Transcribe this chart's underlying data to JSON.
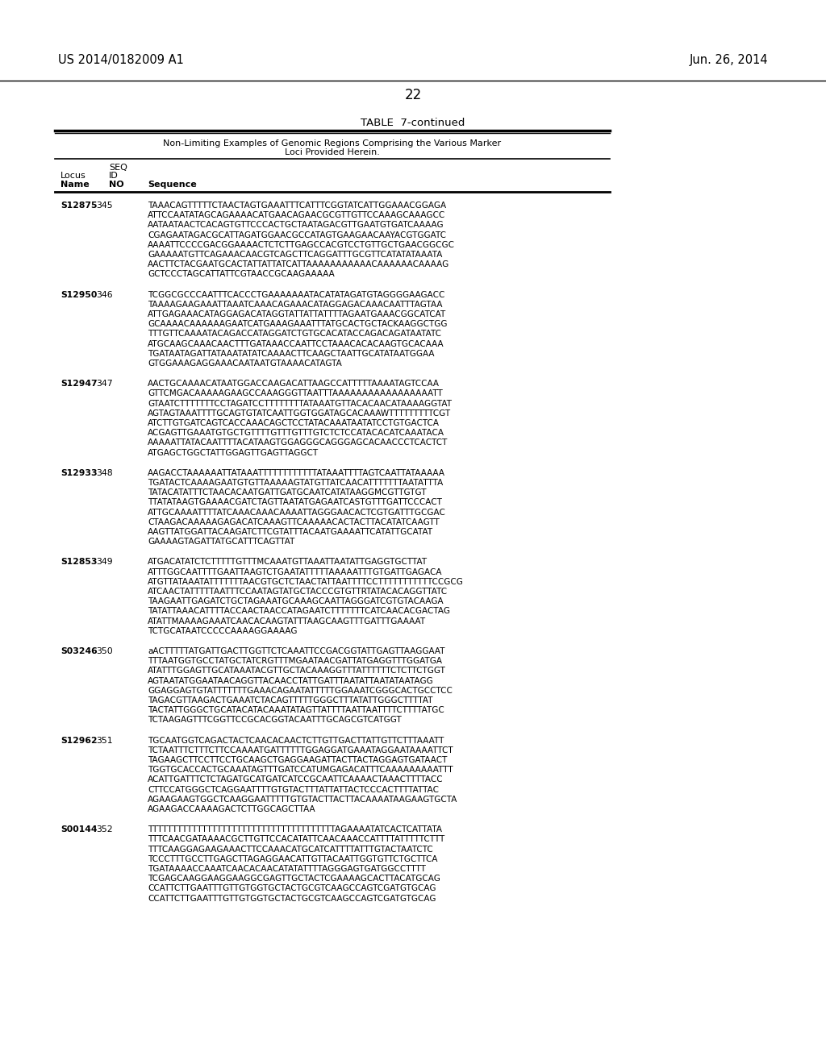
{
  "patent_number": "US 2014/0182009 A1",
  "date": "Jun. 26, 2014",
  "page_number": "22",
  "table_title": "TABLE  7-continued",
  "table_subtitle_line1": "Non-Limiting Examples of Genomic Regions Comprising the Various Marker",
  "table_subtitle_line2": "Loci Provided Herein.",
  "entries": [
    {
      "locus": "S12875",
      "seq_id": "345",
      "lines": [
        "TAAACAGTTTTTCTAACTAGTGAAATTTCATTTCGGTATCATTGGAAACGGAGA",
        "ATTCCAATATAGCAGAAAACATGAACAGAACGCGTTGTTCCAAAGCAAAGCC",
        "AATAATAACTCACAGTGTTCCCACTGCTAATAGACGTTGAATGTGATCAAAAG",
        "CGAGAATAGACGCATTAGATGGAACGCCATAGTGAAGAACAAYACGTGGATC",
        "AAAATTCCCCGACGGAAAACTCTCTTGAGCCACGTCCTGTTGCTGAACGGCGC",
        "GAAAAATGTTCAGAAACAACGTCAGCTTCAGGATTTGCGTTCATATATAAATA",
        "AACTTCTACGAATGCACTATTATTATCATTAAAAAAAAAAACAAAAAACAAAAG",
        "GCTCCCTAGCATTATTCGTAACCGCAAGAAAAA"
      ]
    },
    {
      "locus": "S12950",
      "seq_id": "346",
      "lines": [
        "TCGGCGCCCAATTTCACCCTGAAAAAAATACATATAGATGTAGGGGAAGACC",
        "TAAAAGAAGAAATTAAATCAAACAGAAACATAGGAGACAAACAATTTAGTAA",
        "ATTGAGAAACATAGGAGACATAGGTATTATTATTTTAGAATGAAACGGCATCAT",
        "GCAAAACAAAAAAGAATCATGAAAGAAATTTATGCACTGCTACKAAGGCTGG",
        "TTTGTTCAAAATACAGACCATAGGATCTGTGCACATACCAGACAGATAATATC",
        "ATGCAAGCAAACAACTTTGATAAACCAATTCCTAAACACACAAGTGCACAAA",
        "TGATAATAGATTATAAATATATCAAAACTTCAAGCTAATTGCATATAATGGAA",
        "GTGGAAAGAGGAAACAATAATGTAAAACATAGTA"
      ]
    },
    {
      "locus": "S12947",
      "seq_id": "347",
      "lines": [
        "AACTGCAAAACATAATGGACCAAGACATTAAGCCATTTTTAAAATAGTCCAA",
        "GTTCMGACAAAAAGAAGCCAAAGGGTTAATTTAAAAAAAAAAAAAAAAATT",
        "GTAATCTTTTTTTCCTAGATCCTTTTTTTTATAAATGTTACACAACATAAAAGGTAT",
        "AGTAGTAAATTTTGCAGTGTATCAATTGGTGGATAGCACAAAWTTTTTTTTTCGT",
        "ATCTTGTGATCAGTCACCAAACAGCTCCTATACAAATAATATCCTGTGACTCA",
        "ACGAGTTGAAATGTGCTGTTTTGTTTGTTTGTCTCTCCATACACATCAAATACA",
        "AAAAATTATACAATTTTACATAAGTGGAGGGCAGGGAGCACAACCCTCACTCT",
        "ATGAGCTGGCTATTGGAGTTGAGTTAGGCT"
      ]
    },
    {
      "locus": "S12933",
      "seq_id": "348",
      "lines": [
        "AAGACCTAAAAAATTATAAATTTTTTTTTTTTATAAATTTTAGTCAATTATAAAAA",
        "TGATACTCAAAAGAATGTGTTAAAAAGTATGTTATCAACATTTTTTTAATATTTA",
        "TATACATATTTCTAACACAATGATTGATGCAATCATATAAGGMCGTTGTGT",
        "TTATATAAGTGAAAACGATCTAGTTAATATGAGAATCASTGTTTGATTCCCACT",
        "ATTGCAAAATTTTATCAAACAAACAAAATTAGGGAACACTCGTGATTTGCGAC",
        "CTAAGACAAAAAGAGACATCAAAGTTCAAAAACACTACTTACATATCAAGTT",
        "AAGTTATGGATTACAAGATCTTCGTATTTACAATGAAAATTCATATTGCATAT",
        "GAAAAGTAGATTATGCATTTCAGTTAT"
      ]
    },
    {
      "locus": "S12853",
      "seq_id": "349",
      "lines": [
        "ATGACATATCTCTTTTTGTTTMCAAATGTTAAATTAATATTGAGGTGCTTAT",
        "ATTTGGCAATTTTGAATTAAGTCTGAATATTTTTAAAAATTTGTGATTGAGACA",
        "ATGTTATAAATATTTTTTTAACGTGCTCTAACTATTAATTTTCCTTTTTTTTTTTCCGCG",
        "ATCAACTATTTTTAATTTCCAATAGTATGCTACCCGTGTTRTATACACAGGTTATC",
        "TAAGAATTGAGATCTGCTAGAAATGCAAAGCAATTAGGGATCGTGTACAAGA",
        "TATATTAAACATTTTACCAACTAACCATAGAATCTTTTTTTCATCAACACGACTAG",
        "ATATTMAAAAGAAATCAACACAAGTATTTAAGCAAGTTTGATTTGAAAAT",
        "TCTGCATAATCCCCCAAAAGGAAAAG"
      ]
    },
    {
      "locus": "S03246",
      "seq_id": "350",
      "lines": [
        "aACTTTTTATGATTGACTTGGTTCTCAAATTCCGACGGTATTGAGTTAAGGAAT",
        "TTTAATGGTGCCTATGCTATCRGTTTMGAATAACGATTATGAGGTTTGGATGA",
        "ATATTTGGAGTTGCATAAATACGTTGCTACAAAGGTTTATTTTTTCTCTTCTGGT",
        "AGTAATATGGAATAACAGGTTACAACCTATTGATTTAATATTAATATAATAGG",
        "GGAGGAGTGTATTTTTTTGAAACAGAATATTTTTGGAAATCGGGCACTGCCTCC",
        "TAGACGTTAAGACTGAAATCTACAGTTTTTGGGCTTTATATTGGGCTTTTAT",
        "TACTATTGGGCTGCATACATACAAATATAGTTATTTTAATTAATTTTCTTTTATGC",
        "TCTAAGAGTTTCGGTTCCGCACGGTACAATTTGCAGCGTCATGGT"
      ]
    },
    {
      "locus": "S12962",
      "seq_id": "351",
      "lines": [
        "TGCAATGGTCAGACTACTCAACACAACTCTTGTTGACTTATTGTTCTTTAAATT",
        "TCTAATTTCTTTCTTCCAAAATGATTTTTTGGAGGATGAAATAGGAATAAAATTCT",
        "TAGAAGCTTCCTTCCTGCAAGCTGAGGAAGATTACTTACTAGGAGTGATAACT",
        "TGGTGCACCACTGCAAATAGTTTGATCCATUMGAGACATTTCAAAAAAAAATTT",
        "ACATTGATTTCTCTAGATGCATGATCATCCGCAATTCAAAACTAAACTTTTACC",
        "CTTCCATGGGCTCAGGAATTTTGTGTACTTTATTATTACTCCCACTTTTATTAC",
        "AGAAGAAGTGGCTCAAGGAATTTTTGTGTACTTACTTACAAAATAAGAAGTGCTA",
        "AGAAGACCAAAAGACTCTTGGCAGCTTAA"
      ]
    },
    {
      "locus": "S00144",
      "seq_id": "352",
      "lines": [
        "TTTTTTTTTTTTTTTTTTTTTTTTTTTTTTTTTTTTTTAGAAAATATCACTCATTATA",
        "TTTCAACGATAAAACGCTTGTTCCACATATTCAACAAACCATTTTATTTTTCTTT",
        "TTTCAAGGAGAAGAAACTTCCAAACATGCATCATTTTATTTGTACTAATCTC",
        "TCCCTTTGCCTTGAGCTTAGAGGAACATTGTTACAATTGGTGTTCTGCTTCA",
        "TGATAAAACCAAATCAACACAACATATATTTTAGGGAGTGATGGCCTTTT",
        "TCGAGCAAGGAAGGAAGGCGAGTTGCTACTCGAAAAGCACTTACATGCAG",
        "CCATTCTTGAATTTGTTGTGGTGCTACTGCGTCAAGCCAGTCGATGTGCAG",
        "CCATTCTTGAATTTGTTGTGGTGCTACTGCGTCAAGCCAGTCGATGTGCAG"
      ]
    }
  ],
  "bg_color": "#ffffff",
  "text_color": "#000000"
}
